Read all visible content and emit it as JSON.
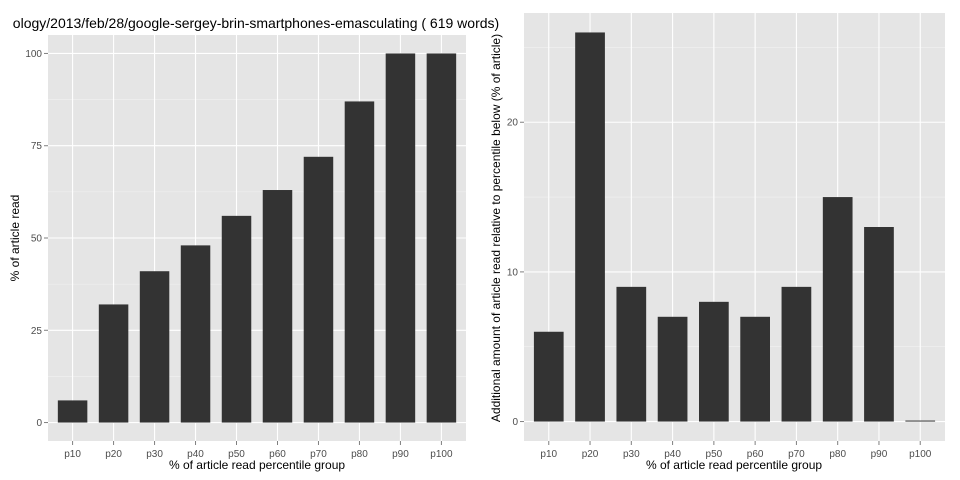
{
  "chart_data": [
    {
      "type": "bar",
      "title": "ology/2013/feb/28/google-sergey-brin-smartphones-emasculating ( 619 words)",
      "xlabel": "% of article read percentile group",
      "ylabel": "% of article read",
      "categories": [
        "p10",
        "p20",
        "p30",
        "p40",
        "p50",
        "p60",
        "p70",
        "p80",
        "p90",
        "p100"
      ],
      "values": [
        6,
        32,
        41,
        48,
        56,
        63,
        72,
        87,
        100,
        100
      ],
      "ylim": [
        -5,
        105
      ],
      "yticks": [
        0,
        25,
        50,
        75,
        100
      ],
      "ytick_labels": [
        "0",
        "25",
        "50",
        "75",
        "100"
      ],
      "grid": true,
      "bar_color": "#333333",
      "panel_color": "#e5e5e5"
    },
    {
      "type": "bar",
      "title": "",
      "xlabel": "% of article read percentile group",
      "ylabel": "Additional amount of article read relative to percentile below (% of article)",
      "categories": [
        "p10",
        "p20",
        "p30",
        "p40",
        "p50",
        "p60",
        "p70",
        "p80",
        "p90",
        "p100"
      ],
      "values": [
        6,
        26,
        9,
        7,
        8,
        7,
        9,
        15,
        13,
        0
      ],
      "ylim": [
        -1.3,
        27.3
      ],
      "yticks": [
        0,
        10,
        20
      ],
      "ytick_labels": [
        "0",
        "10",
        "20"
      ],
      "grid": true,
      "bar_color": "#333333",
      "panel_color": "#e5e5e5"
    }
  ]
}
